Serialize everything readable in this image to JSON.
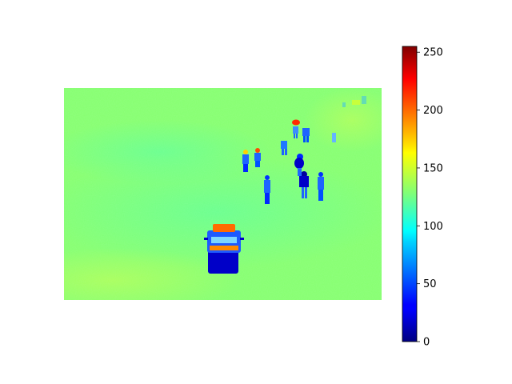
{
  "colormap": "jet",
  "colorbar": {
    "min": 0,
    "max": 255,
    "ticks": [
      "0",
      "50",
      "100",
      "150",
      "200",
      "250"
    ],
    "tick_values": [
      0,
      50,
      100,
      150,
      200,
      250
    ]
  },
  "scene": {
    "background_value": 135,
    "objects": [
      {
        "name": "vehicle",
        "colors": [
          "#ff6a00",
          "#ff3c00",
          "#0a3cff",
          "#0000c8"
        ]
      },
      {
        "name": "pedestrian-group",
        "colors": [
          "#1e64ff",
          "#0028ff",
          "#0000a0"
        ]
      },
      {
        "name": "red-marker",
        "colors": [
          "#ff2a00",
          "#ffd000"
        ]
      }
    ]
  }
}
